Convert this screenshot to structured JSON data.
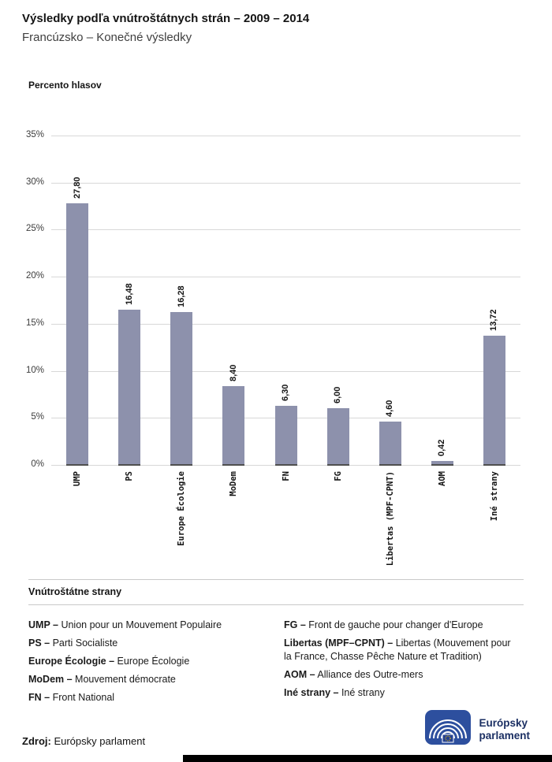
{
  "header": {
    "title": "Výsledky podľa vnútroštátnych strán – 2009 – 2014",
    "subtitle": "Francúzsko – Konečné výsledky"
  },
  "chart_data": {
    "type": "bar",
    "title": "Výsledky podľa vnútroštátnych strán – 2009 – 2014",
    "subtitle": "Francúzsko – Konečné výsledky",
    "ylabel": "Percento hlasov",
    "categories": [
      "UMP",
      "PS",
      "Europe Écologie",
      "MoDem",
      "FN",
      "FG",
      "Libertas (MPF-CPNT)",
      "AOM",
      "Iné strany"
    ],
    "values": [
      27.8,
      16.48,
      16.28,
      8.4,
      6.3,
      6.0,
      4.6,
      0.42,
      13.72
    ],
    "value_labels": [
      "27,80",
      "16,48",
      "16,28",
      "8,40",
      "6,30",
      "6,00",
      "4,60",
      "0,42",
      "13,72"
    ],
    "ylim": [
      0,
      35
    ],
    "ytick_step": 5,
    "ytick_labels": [
      "0%",
      "5%",
      "10%",
      "15%",
      "20%",
      "25%",
      "30%",
      "35%"
    ],
    "grid": true,
    "legend_position": "none",
    "bar_color": "#8d91ac"
  },
  "legend": {
    "heading": "Vnútroštátne strany",
    "columns": [
      [
        {
          "abbr": "UMP –",
          "name": "Union pour un Mouvement Populaire"
        },
        {
          "abbr": "PS –",
          "name": "Parti Socialiste"
        },
        {
          "abbr": "Europe Écologie –",
          "name": "Europe Écologie"
        },
        {
          "abbr": "MoDem –",
          "name": "Mouvement démocrate"
        },
        {
          "abbr": "FN –",
          "name": "Front National"
        }
      ],
      [
        {
          "abbr": "FG –",
          "name": "Front de gauche pour changer d'Europe"
        },
        {
          "abbr": "Libertas (MPF–CPNT) –",
          "name": "Libertas (Mouvement pour la France, Chasse Pêche Nature et Tradition)"
        },
        {
          "abbr": "AOM –",
          "name": "Alliance des Outre-mers"
        },
        {
          "abbr": "Iné strany –",
          "name": "Iné strany"
        }
      ]
    ]
  },
  "source": {
    "label": "Zdroj:",
    "value": "Európsky parlament"
  },
  "logo": {
    "line1": "Európsky",
    "line2": "parlament",
    "color": "#2d4f9e"
  }
}
